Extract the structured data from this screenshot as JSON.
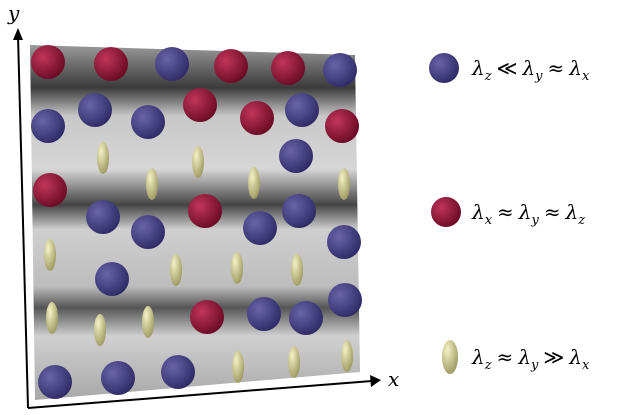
{
  "axes": {
    "y_label": "y",
    "x_label": "x"
  },
  "legend": {
    "items": [
      {
        "terms": [
          "λ",
          "z",
          "≪",
          "λ",
          "y",
          "≈",
          "λ",
          "x"
        ]
      },
      {
        "terms": [
          "λ",
          "x",
          "≈",
          "λ",
          "y",
          "≈",
          "λ",
          "z"
        ]
      },
      {
        "terms": [
          "λ",
          "z",
          "≈",
          "λ",
          "y",
          "≫",
          "λ",
          "x"
        ]
      }
    ]
  }
}
